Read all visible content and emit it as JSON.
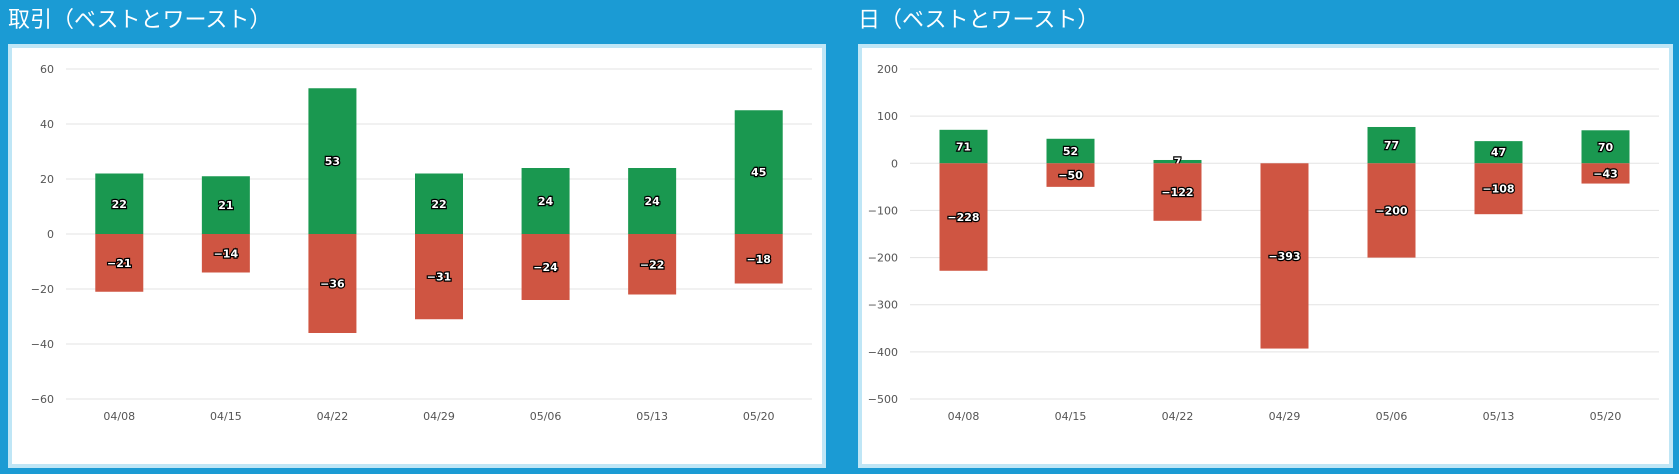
{
  "colors": {
    "background": "#1b9bd4",
    "positive": "#1a9850",
    "negative": "#cf5542",
    "card_border": "#bfe6f6",
    "grid": "#e3e3e3"
  },
  "chart_data": [
    {
      "type": "bar",
      "title": "取引（ベストとワースト）",
      "categories": [
        "04/08",
        "04/15",
        "04/22",
        "04/29",
        "05/06",
        "05/13",
        "05/20"
      ],
      "series": [
        {
          "values": [
            22,
            21,
            53,
            22,
            24,
            24,
            45
          ],
          "color": "#1a9850"
        },
        {
          "values": [
            -21,
            -14,
            -36,
            -31,
            -24,
            -22,
            -18
          ],
          "color": "#cf5542"
        }
      ],
      "yticks": [
        60,
        40,
        20,
        0,
        -20,
        -40,
        -60
      ],
      "ylim": [
        -60,
        60
      ],
      "grid": true,
      "stacked": true
    },
    {
      "type": "bar",
      "title": "日（ベストとワースト）",
      "categories": [
        "04/08",
        "04/15",
        "04/22",
        "04/29",
        "05/06",
        "05/13",
        "05/20"
      ],
      "series": [
        {
          "values": [
            71,
            52,
            7,
            0,
            77,
            47,
            70
          ],
          "color": "#1a9850"
        },
        {
          "values": [
            -228,
            -50,
            -122,
            -393,
            -200,
            -108,
            -43
          ],
          "color": "#cf5542"
        }
      ],
      "yticks": [
        200,
        100,
        0,
        -100,
        -200,
        -300,
        -400,
        -500
      ],
      "ylim": [
        -500,
        200
      ],
      "grid": true,
      "stacked": true
    }
  ]
}
